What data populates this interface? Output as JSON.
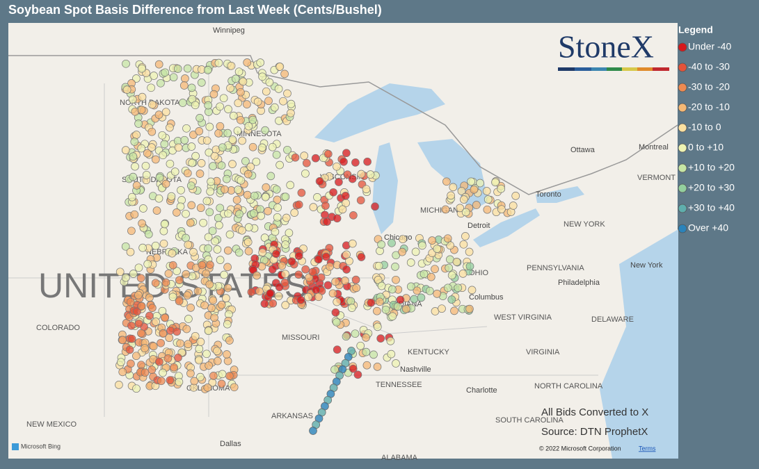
{
  "header": {
    "title": "Soybean Spot Basis Difference from Last Week (Cents/Bushel)"
  },
  "legend": {
    "title": "Legend",
    "items": [
      {
        "label": "Under -40",
        "color": "#d7191c"
      },
      {
        "label": "-40 to -30",
        "color": "#e4533a"
      },
      {
        "label": "-30 to -20",
        "color": "#ee8a52"
      },
      {
        "label": "-20 to -10",
        "color": "#f5b875"
      },
      {
        "label": "-10 to 0",
        "color": "#fbe0a0"
      },
      {
        "label": "0 to +10",
        "color": "#eef3b3"
      },
      {
        "label": "+10 to +20",
        "color": "#c7e6a5"
      },
      {
        "label": "+20 to +30",
        "color": "#93cf9e"
      },
      {
        "label": "+30 to +40",
        "color": "#5faead"
      },
      {
        "label": "Over +40",
        "color": "#2b83ba"
      }
    ]
  },
  "logo": "StoneX",
  "map_labels": [
    "Winnipeg",
    "NORTH DAKOTA",
    "MINNESOTA",
    "SOUTH DAKOTA",
    "WISCONSIN",
    "NEBRASKA",
    "UNITED STATES",
    "COLORADO",
    "MISSOURI",
    "OKLAHOMA",
    "ARKANSAS",
    "NEW MEXICO",
    "Dallas",
    "Chicago",
    "MICHIGAN",
    "Detroit",
    "Toronto",
    "Ottawa",
    "Montreal",
    "VERMONT",
    "NEW YORK",
    "New York",
    "PENNSYLVANIA",
    "Philadelphia",
    "OHIO",
    "Columbus",
    "INDIANA",
    "WEST VIRGINIA",
    "DELAWARE",
    "KENTUCKY",
    "VIRGINIA",
    "Nashville",
    "TENNESSEE",
    "NORTH CAROLINA",
    "Charlotte",
    "SOUTH CAROLINA",
    "ALABAMA"
  ],
  "notes": [
    "All Bids Converted to X",
    "Source: DTN ProphetX"
  ],
  "footer": {
    "brand": "Microsoft Bing",
    "copyright": "© 2022 Microsoft Corporation",
    "terms": "Terms"
  }
}
